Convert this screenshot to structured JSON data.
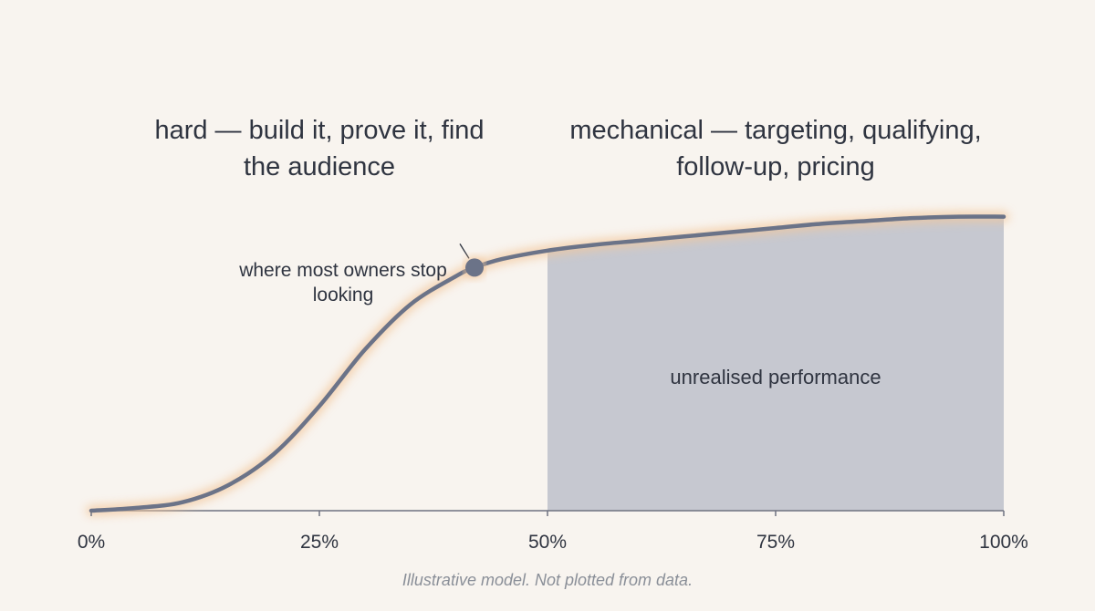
{
  "chart_data": {
    "type": "area",
    "xlim": [
      0,
      100
    ],
    "ylim": [
      0,
      100
    ],
    "x_ticks": [
      "0%",
      "25%",
      "50%",
      "75%",
      "100%"
    ],
    "x_tick_values": [
      0,
      25,
      50,
      75,
      100
    ],
    "series": [
      {
        "x": [
          0,
          5,
          10,
          15,
          20,
          25,
          30,
          35,
          40,
          42,
          45,
          50,
          55,
          60,
          65,
          70,
          75,
          80,
          85,
          90,
          95,
          100
        ],
        "y": [
          0,
          1,
          3,
          9,
          20,
          37,
          57,
          73,
          83,
          86,
          89,
          92,
          94,
          95.5,
          97,
          98.5,
          100,
          101.5,
          102.5,
          103.5,
          104,
          104
        ]
      }
    ],
    "marker": {
      "x": 42,
      "y": 86,
      "label": "where most owners stop looking"
    },
    "shaded_region": {
      "x_start": 50,
      "x_end": 100,
      "label": "unrealised performance"
    },
    "annotations": [
      "hard — build it, prove it, find the audience",
      "mechanical — targeting, qualifying, follow-up, pricing"
    ],
    "grid": false,
    "legend": "none"
  },
  "notes": {
    "left": "hard — build it, prove it, find the audience",
    "right": "mechanical — targeting, qualifying, follow-up, pricing"
  },
  "caption": "Illustrative model. Not plotted from data.",
  "colors": {
    "background": "#f8f4ef",
    "curve": "#6b7388",
    "glow": "#f3c79c",
    "shade": "#c6c8d0",
    "axis": "#6e7280",
    "text": "#2f3440",
    "caption": "#8a8f98"
  }
}
